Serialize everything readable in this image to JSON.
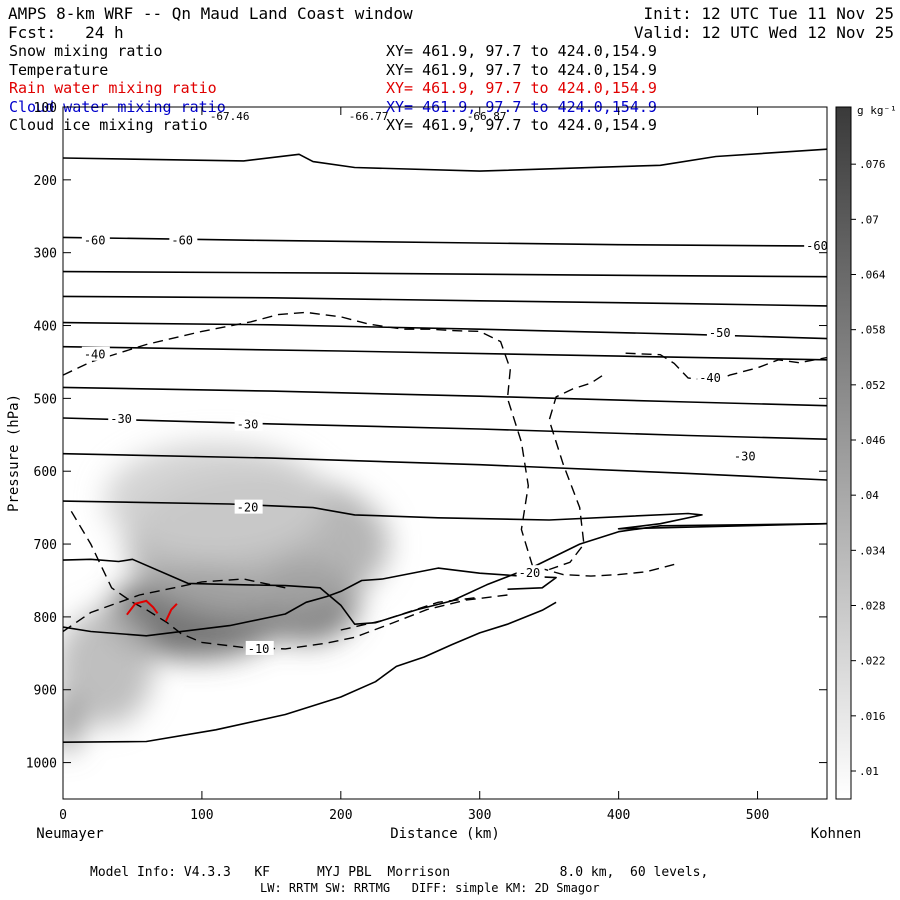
{
  "header": {
    "title": "AMPS 8-km WRF -- Qn Maud Land Coast window",
    "forecast": "Fcst:   24 h",
    "init": "Init: 12 UTC Tue 11 Nov 25",
    "valid": "Valid: 12 UTC Wed 12 Nov 25"
  },
  "fields": [
    {
      "label": "Snow mixing ratio",
      "xy": "XY= 461.9, 97.7 to 424.0,154.9",
      "color": "#000000"
    },
    {
      "label": "Temperature",
      "xy": "XY= 461.9, 97.7 to 424.0,154.9",
      "color": "#000000"
    },
    {
      "label": "Rain water mixing ratio",
      "xy": "XY= 461.9, 97.7 to 424.0,154.9",
      "color": "#e00000"
    },
    {
      "label": "Cloud water mixing ratio",
      "xy": "XY= 461.9, 97.7 to 424.0,154.9",
      "color": "#0000cc"
    },
    {
      "label": "Cloud ice mixing ratio",
      "xy": "XY= 461.9, 97.7 to 424.0,154.9",
      "color": "#000000"
    }
  ],
  "footer": {
    "line1": "Model Info: V4.3.3   KF      MYJ PBL  Morrison              8.0 km,  60 levels,",
    "line2": "LW: RRTM SW: RRTMG   DIFF: simple KM: 2D Smagor"
  },
  "chart_data": {
    "type": "contour",
    "xlabel": "Distance (km)",
    "ylabel": "Pressure (hPa)",
    "x_left_label": "Neumayer",
    "x_right_label": "Kohnen",
    "xlim": [
      0,
      550
    ],
    "ylim": [
      1050,
      100
    ],
    "xticks": [
      0,
      100,
      200,
      300,
      400,
      500
    ],
    "yticks": [
      100,
      200,
      300,
      400,
      500,
      600,
      700,
      800,
      900,
      1000
    ],
    "colorbar": {
      "unit": "g kg⁻¹",
      "ticks": [
        ".01",
        ".016",
        ".022",
        ".028",
        ".034",
        ".04",
        ".046",
        ".052",
        ".058",
        ".064",
        ".07",
        ".076"
      ]
    },
    "top_marks": [
      {
        "x": 120,
        "text": "-67.46"
      },
      {
        "x": 220,
        "text": "-66.77"
      },
      {
        "x": 305,
        "text": "-66.87"
      }
    ],
    "isotherm_labels": [
      {
        "x": 15,
        "p": 283,
        "text": "-60"
      },
      {
        "x": 78,
        "p": 283,
        "text": "-60"
      },
      {
        "x": 535,
        "p": 291,
        "text": "-60"
      },
      {
        "x": 465,
        "p": 410,
        "text": "-50"
      },
      {
        "x": 15,
        "p": 440,
        "text": "-40"
      },
      {
        "x": 458,
        "p": 472,
        "text": "-40"
      },
      {
        "x": 34,
        "p": 528,
        "text": "-30"
      },
      {
        "x": 125,
        "p": 536,
        "text": "-30"
      },
      {
        "x": 483,
        "p": 580,
        "text": "-30"
      },
      {
        "x": 125,
        "p": 650,
        "text": "-20"
      },
      {
        "x": 328,
        "p": 740,
        "text": "-20"
      },
      {
        "x": 133,
        "p": 844,
        "text": "-10"
      }
    ],
    "isotherms": [
      [
        [
          0,
          170
        ],
        [
          130,
          174
        ],
        [
          170,
          165
        ],
        [
          180,
          175
        ],
        [
          210,
          183
        ],
        [
          300,
          188
        ],
        [
          430,
          180
        ],
        [
          470,
          168
        ],
        [
          550,
          158
        ]
      ],
      [
        [
          0,
          279
        ],
        [
          140,
          283
        ],
        [
          270,
          286
        ],
        [
          400,
          289
        ],
        [
          550,
          291
        ]
      ],
      [
        [
          0,
          326
        ],
        [
          200,
          328
        ],
        [
          400,
          331
        ],
        [
          550,
          333
        ]
      ],
      [
        [
          0,
          360
        ],
        [
          150,
          362
        ],
        [
          300,
          366
        ],
        [
          450,
          370
        ],
        [
          550,
          373
        ]
      ],
      [
        [
          0,
          396
        ],
        [
          150,
          399
        ],
        [
          300,
          405
        ],
        [
          450,
          412
        ],
        [
          550,
          418
        ]
      ],
      [
        [
          0,
          429
        ],
        [
          200,
          435
        ],
        [
          400,
          442
        ],
        [
          550,
          447
        ]
      ],
      [
        [
          0,
          485
        ],
        [
          150,
          490
        ],
        [
          300,
          497
        ],
        [
          450,
          505
        ],
        [
          550,
          510
        ]
      ],
      [
        [
          0,
          527
        ],
        [
          150,
          535
        ],
        [
          300,
          542
        ],
        [
          450,
          551
        ],
        [
          550,
          556
        ]
      ],
      [
        [
          0,
          576
        ],
        [
          150,
          582
        ],
        [
          300,
          591
        ],
        [
          450,
          603
        ],
        [
          550,
          612
        ]
      ],
      [
        [
          0,
          641
        ],
        [
          120,
          645
        ],
        [
          180,
          650
        ],
        [
          210,
          660
        ],
        [
          270,
          664
        ],
        [
          350,
          667
        ],
        [
          450,
          658
        ],
        [
          460,
          660
        ],
        [
          430,
          672
        ],
        [
          400,
          679
        ],
        [
          550,
          672
        ]
      ],
      [
        [
          0,
          722
        ],
        [
          20,
          721
        ],
        [
          40,
          724
        ],
        [
          50,
          721
        ],
        [
          90,
          754
        ],
        [
          130,
          756
        ],
        [
          160,
          757
        ],
        [
          185,
          760
        ],
        [
          200,
          784
        ],
        [
          210,
          810
        ],
        [
          225,
          808
        ],
        [
          255,
          790
        ],
        [
          280,
          778
        ],
        [
          305,
          756
        ],
        [
          340,
          730
        ],
        [
          372,
          700
        ],
        [
          400,
          683
        ],
        [
          430,
          675
        ],
        [
          550,
          672
        ]
      ],
      [
        [
          0,
          814
        ],
        [
          20,
          820
        ],
        [
          60,
          826
        ],
        [
          120,
          812
        ],
        [
          160,
          796
        ],
        [
          175,
          780
        ],
        [
          190,
          772
        ],
        [
          200,
          765
        ],
        [
          215,
          750
        ],
        [
          230,
          748
        ],
        [
          270,
          733
        ],
        [
          300,
          740
        ],
        [
          330,
          744
        ],
        [
          355,
          746
        ],
        [
          345,
          760
        ],
        [
          320,
          762
        ]
      ],
      [
        [
          0,
          972
        ],
        [
          60,
          971
        ],
        [
          110,
          955
        ],
        [
          160,
          934
        ],
        [
          200,
          910
        ],
        [
          225,
          889
        ],
        [
          240,
          868
        ],
        [
          260,
          855
        ],
        [
          280,
          838
        ],
        [
          300,
          822
        ],
        [
          320,
          810
        ],
        [
          345,
          791
        ],
        [
          355,
          780
        ]
      ]
    ],
    "dashed_contours": [
      [
        [
          0,
          468
        ],
        [
          20,
          450
        ],
        [
          40,
          438
        ],
        [
          60,
          426
        ],
        [
          100,
          408
        ],
        [
          135,
          395
        ],
        [
          155,
          385
        ],
        [
          175,
          382
        ],
        [
          200,
          388
        ],
        [
          220,
          398
        ],
        [
          245,
          405
        ],
        [
          265,
          405
        ],
        [
          280,
          407
        ],
        [
          300,
          408
        ],
        [
          315,
          422
        ],
        [
          322,
          460
        ],
        [
          320,
          500
        ],
        [
          330,
          560
        ],
        [
          335,
          620
        ],
        [
          330,
          680
        ],
        [
          338,
          730
        ],
        [
          360,
          742
        ],
        [
          380,
          744
        ],
        [
          400,
          742
        ],
        [
          420,
          738
        ],
        [
          440,
          728
        ]
      ],
      [
        [
          0,
          820
        ],
        [
          20,
          794
        ],
        [
          55,
          770
        ],
        [
          80,
          760
        ],
        [
          100,
          752
        ],
        [
          130,
          748
        ],
        [
          160,
          760
        ]
      ],
      [
        [
          6,
          655
        ],
        [
          20,
          700
        ],
        [
          35,
          760
        ],
        [
          50,
          780
        ],
        [
          60,
          790
        ],
        [
          75,
          808
        ],
        [
          85,
          823
        ],
        [
          100,
          835
        ],
        [
          130,
          842
        ],
        [
          160,
          844
        ],
        [
          190,
          836
        ],
        [
          210,
          828
        ],
        [
          235,
          810
        ],
        [
          262,
          790
        ],
        [
          290,
          777
        ],
        [
          320,
          770
        ]
      ],
      [
        [
          200,
          818
        ],
        [
          230,
          805
        ],
        [
          270,
          780
        ],
        [
          300,
          773
        ]
      ],
      [
        [
          405,
          438
        ],
        [
          430,
          440
        ],
        [
          440,
          452
        ],
        [
          450,
          472
        ],
        [
          470,
          476
        ],
        [
          480,
          468
        ],
        [
          500,
          458
        ],
        [
          515,
          447
        ],
        [
          530,
          451
        ],
        [
          550,
          444
        ]
      ],
      [
        [
          388,
          469
        ],
        [
          380,
          479
        ],
        [
          367,
          487
        ],
        [
          355,
          498
        ],
        [
          350,
          530
        ],
        [
          360,
          590
        ],
        [
          372,
          650
        ],
        [
          375,
          700
        ],
        [
          365,
          725
        ],
        [
          350,
          735
        ]
      ]
    ],
    "rain_contours": [
      [
        [
          46,
          797
        ],
        [
          52,
          782
        ],
        [
          60,
          778
        ],
        [
          65,
          787
        ],
        [
          68,
          795
        ]
      ],
      [
        [
          74,
          806
        ],
        [
          78,
          790
        ],
        [
          82,
          782
        ]
      ]
    ],
    "snow_blobs": [
      {
        "x": 95,
        "p": 798,
        "rx": 65,
        "rp": 60,
        "level": 0.065
      },
      {
        "x": 175,
        "p": 780,
        "rx": 38,
        "rp": 55,
        "level": 0.06
      },
      {
        "x": 140,
        "p": 700,
        "rx": 95,
        "rp": 100,
        "level": 0.035
      },
      {
        "x": 110,
        "p": 640,
        "rx": 80,
        "rp": 80,
        "level": 0.02
      },
      {
        "x": 30,
        "p": 870,
        "rx": 35,
        "rp": 80,
        "level": 0.03
      },
      {
        "x": 3,
        "p": 945,
        "rx": 10,
        "rp": 40,
        "level": 0.05
      }
    ]
  }
}
